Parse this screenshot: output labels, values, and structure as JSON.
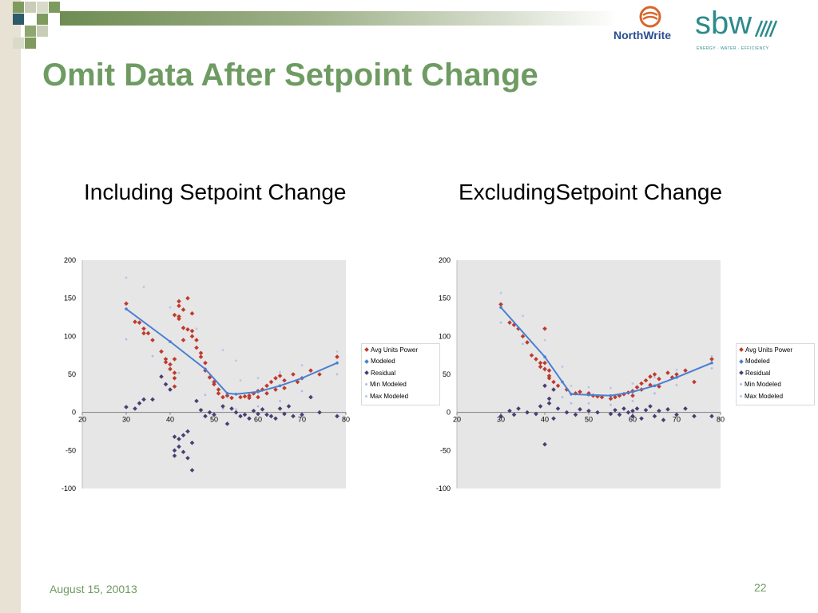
{
  "slide": {
    "title": "Omit Data After Setpoint Change",
    "footer_date": "August 15, 20013",
    "page_number": "22",
    "accent_color": "#6e9b62"
  },
  "logos": {
    "northwrite": "NorthWrite",
    "sbw": "sbw",
    "sbw_tagline": "ENERGY · WATER · EFFICIENCY"
  },
  "chart_data": [
    {
      "type": "scatter",
      "title": "Including Setpoint Change",
      "xlim": [
        20,
        80
      ],
      "ylim": [
        -100,
        200
      ],
      "x_ticks": [
        "20",
        "30",
        "40",
        "50",
        "60",
        "70",
        "80"
      ],
      "y_ticks": [
        "200",
        "150",
        "100",
        "50",
        "0",
        "-50",
        "-100"
      ],
      "legend": [
        "Avg Units Power",
        "Modeled",
        "Residual",
        "Min Modeled",
        "Max Modeled"
      ],
      "legend_position": "right",
      "series": [
        {
          "name": "Avg Units Power",
          "color": "#c0392b",
          "marker": "diamond",
          "points": [
            [
              30,
              143
            ],
            [
              32,
              119
            ],
            [
              33,
              118
            ],
            [
              34,
              110
            ],
            [
              34,
              104
            ],
            [
              35,
              104
            ],
            [
              36,
              95
            ],
            [
              38,
              80
            ],
            [
              39,
              70
            ],
            [
              39,
              66
            ],
            [
              40,
              63
            ],
            [
              40,
              57
            ],
            [
              41,
              70
            ],
            [
              41,
              52
            ],
            [
              41,
              45
            ],
            [
              41,
              34
            ],
            [
              41,
              128
            ],
            [
              42,
              126
            ],
            [
              42,
              123
            ],
            [
              42,
              140
            ],
            [
              42,
              146
            ],
            [
              43,
              135
            ],
            [
              43,
              111
            ],
            [
              43,
              95
            ],
            [
              44,
              109
            ],
            [
              44,
              150
            ],
            [
              45,
              130
            ],
            [
              45,
              107
            ],
            [
              45,
              100
            ],
            [
              46,
              95
            ],
            [
              46,
              85
            ],
            [
              47,
              78
            ],
            [
              47,
              73
            ],
            [
              48,
              65
            ],
            [
              48,
              55
            ],
            [
              49,
              46
            ],
            [
              50,
              40
            ],
            [
              50,
              37
            ],
            [
              51,
              30
            ],
            [
              51,
              25
            ],
            [
              52,
              20
            ],
            [
              53,
              22
            ],
            [
              54,
              19
            ],
            [
              56,
              20
            ],
            [
              57,
              21
            ],
            [
              58,
              22
            ],
            [
              58,
              19
            ],
            [
              59,
              25
            ],
            [
              60,
              28
            ],
            [
              60,
              20
            ],
            [
              61,
              30
            ],
            [
              62,
              35
            ],
            [
              62,
              25
            ],
            [
              63,
              40
            ],
            [
              64,
              45
            ],
            [
              64,
              30
            ],
            [
              65,
              48
            ],
            [
              66,
              42
            ],
            [
              66,
              32
            ],
            [
              68,
              50
            ],
            [
              69,
              40
            ],
            [
              70,
              45
            ],
            [
              72,
              55
            ],
            [
              74,
              50
            ],
            [
              78,
              73
            ]
          ]
        },
        {
          "name": "Modeled",
          "color": "#4a7fd1",
          "marker": "line",
          "points": [
            [
              30,
              136
            ],
            [
              40,
              93
            ],
            [
              48,
              57
            ],
            [
              53,
              25
            ],
            [
              55,
              24
            ],
            [
              60,
              27
            ],
            [
              65,
              35
            ],
            [
              70,
              45
            ],
            [
              78,
              65
            ]
          ]
        },
        {
          "name": "Residual",
          "color": "#4a3d73",
          "marker": "diamond",
          "points": [
            [
              30,
              7
            ],
            [
              32,
              5
            ],
            [
              33,
              12
            ],
            [
              34,
              17
            ],
            [
              36,
              17
            ],
            [
              38,
              47
            ],
            [
              39,
              37
            ],
            [
              40,
              30
            ],
            [
              41,
              -32
            ],
            [
              41,
              -50
            ],
            [
              41,
              -57
            ],
            [
              42,
              -35
            ],
            [
              42,
              -45
            ],
            [
              43,
              -30
            ],
            [
              43,
              -52
            ],
            [
              44,
              -25
            ],
            [
              44,
              -60
            ],
            [
              45,
              -76
            ],
            [
              45,
              -40
            ],
            [
              46,
              15
            ],
            [
              47,
              3
            ],
            [
              48,
              -5
            ],
            [
              49,
              0
            ],
            [
              50,
              -3
            ],
            [
              52,
              8
            ],
            [
              53,
              -15
            ],
            [
              54,
              5
            ],
            [
              55,
              0
            ],
            [
              56,
              -5
            ],
            [
              57,
              -3
            ],
            [
              58,
              -8
            ],
            [
              59,
              2
            ],
            [
              60,
              -2
            ],
            [
              61,
              4
            ],
            [
              62,
              -3
            ],
            [
              63,
              -5
            ],
            [
              64,
              -8
            ],
            [
              65,
              5
            ],
            [
              66,
              -2
            ],
            [
              67,
              8
            ],
            [
              68,
              -5
            ],
            [
              70,
              -3
            ],
            [
              72,
              20
            ],
            [
              74,
              0
            ],
            [
              78,
              -5
            ]
          ]
        },
        {
          "name": "Min Modeled",
          "color": "#a7c0e8",
          "marker": "dot",
          "points": [
            [
              30,
              96
            ],
            [
              36,
              74
            ],
            [
              42,
              52
            ],
            [
              48,
              23
            ],
            [
              52,
              5
            ],
            [
              55,
              4
            ],
            [
              60,
              8
            ],
            [
              65,
              15
            ],
            [
              70,
              28
            ],
            [
              78,
              50
            ]
          ]
        },
        {
          "name": "Max Modeled",
          "color": "#b4c8ec",
          "marker": "dot",
          "points": [
            [
              30,
              177
            ],
            [
              34,
              165
            ],
            [
              40,
              138
            ],
            [
              46,
              110
            ],
            [
              52,
              82
            ],
            [
              55,
              68
            ],
            [
              56,
              42
            ],
            [
              60,
              45
            ],
            [
              65,
              53
            ],
            [
              70,
              62
            ],
            [
              78,
              80
            ]
          ]
        }
      ]
    },
    {
      "type": "scatter",
      "title": "ExcludingSetpoint Change",
      "xlim": [
        20,
        80
      ],
      "ylim": [
        -100,
        200
      ],
      "x_ticks": [
        "20",
        "30",
        "40",
        "50",
        "60",
        "70",
        "80"
      ],
      "y_ticks": [
        "200",
        "150",
        "100",
        "50",
        "0",
        "-50",
        "-100"
      ],
      "legend": [
        "Avg Units Power",
        "Modeled",
        "Residual",
        "Min Modeled",
        "Max Modeled"
      ],
      "legend_position": "right",
      "series": [
        {
          "name": "Avg Units Power",
          "color": "#c0392b",
          "marker": "diamond",
          "points": [
            [
              30,
              142
            ],
            [
              32,
              118
            ],
            [
              33,
              115
            ],
            [
              34,
              110
            ],
            [
              35,
              100
            ],
            [
              36,
              92
            ],
            [
              37,
              75
            ],
            [
              38,
              70
            ],
            [
              39,
              65
            ],
            [
              39,
              60
            ],
            [
              40,
              110
            ],
            [
              40,
              65
            ],
            [
              40,
              57
            ],
            [
              41,
              55
            ],
            [
              41,
              48
            ],
            [
              41,
              45
            ],
            [
              42,
              40
            ],
            [
              43,
              35
            ],
            [
              45,
              30
            ],
            [
              47,
              25
            ],
            [
              48,
              27
            ],
            [
              50,
              25
            ],
            [
              51,
              22
            ],
            [
              52,
              21
            ],
            [
              53,
              20
            ],
            [
              55,
              18
            ],
            [
              56,
              20
            ],
            [
              57,
              22
            ],
            [
              58,
              24
            ],
            [
              59,
              26
            ],
            [
              60,
              28
            ],
            [
              60,
              22
            ],
            [
              61,
              33
            ],
            [
              62,
              38
            ],
            [
              62,
              30
            ],
            [
              63,
              42
            ],
            [
              64,
              47
            ],
            [
              64,
              36
            ],
            [
              65,
              50
            ],
            [
              66,
              44
            ],
            [
              66,
              34
            ],
            [
              68,
              52
            ],
            [
              69,
              46
            ],
            [
              70,
              50
            ],
            [
              72,
              55
            ],
            [
              74,
              40
            ],
            [
              78,
              70
            ]
          ]
        },
        {
          "name": "Modeled",
          "color": "#4a7fd1",
          "marker": "line",
          "points": [
            [
              30,
              138
            ],
            [
              40,
              73
            ],
            [
              44,
              40
            ],
            [
              46,
              24
            ],
            [
              50,
              23
            ],
            [
              55,
              22
            ],
            [
              60,
              27
            ],
            [
              65,
              35
            ],
            [
              70,
              46
            ],
            [
              78,
              65
            ]
          ]
        },
        {
          "name": "Residual",
          "color": "#4a3d73",
          "marker": "diamond",
          "points": [
            [
              30,
              -5
            ],
            [
              32,
              2
            ],
            [
              33,
              -3
            ],
            [
              34,
              5
            ],
            [
              36,
              0
            ],
            [
              38,
              -2
            ],
            [
              39,
              8
            ],
            [
              40,
              -42
            ],
            [
              40,
              35
            ],
            [
              41,
              18
            ],
            [
              41,
              12
            ],
            [
              42,
              30
            ],
            [
              42,
              -8
            ],
            [
              43,
              5
            ],
            [
              45,
              0
            ],
            [
              47,
              -3
            ],
            [
              48,
              4
            ],
            [
              50,
              2
            ],
            [
              52,
              0
            ],
            [
              55,
              -2
            ],
            [
              56,
              3
            ],
            [
              57,
              -3
            ],
            [
              58,
              5
            ],
            [
              59,
              0
            ],
            [
              60,
              2
            ],
            [
              60,
              -5
            ],
            [
              61,
              5
            ],
            [
              62,
              -8
            ],
            [
              63,
              3
            ],
            [
              64,
              8
            ],
            [
              65,
              -5
            ],
            [
              66,
              2
            ],
            [
              67,
              -10
            ],
            [
              68,
              4
            ],
            [
              70,
              -3
            ],
            [
              72,
              5
            ],
            [
              74,
              -5
            ],
            [
              78,
              -5
            ]
          ]
        },
        {
          "name": "Min Modeled",
          "color": "#a7c0e8",
          "marker": "dot",
          "points": [
            [
              30,
              118
            ],
            [
              35,
              90
            ],
            [
              40,
              55
            ],
            [
              44,
              20
            ],
            [
              46,
              12
            ],
            [
              50,
              12
            ],
            [
              55,
              10
            ],
            [
              60,
              15
            ],
            [
              65,
              25
            ],
            [
              70,
              36
            ],
            [
              78,
              58
            ]
          ]
        },
        {
          "name": "Max Modeled",
          "color": "#b4c8ec",
          "marker": "dot",
          "points": [
            [
              30,
              157
            ],
            [
              35,
              127
            ],
            [
              40,
              95
            ],
            [
              44,
              60
            ],
            [
              46,
              35
            ],
            [
              50,
              33
            ],
            [
              55,
              32
            ],
            [
              60,
              38
            ],
            [
              65,
              46
            ],
            [
              70,
              56
            ],
            [
              78,
              74
            ]
          ]
        }
      ]
    }
  ]
}
